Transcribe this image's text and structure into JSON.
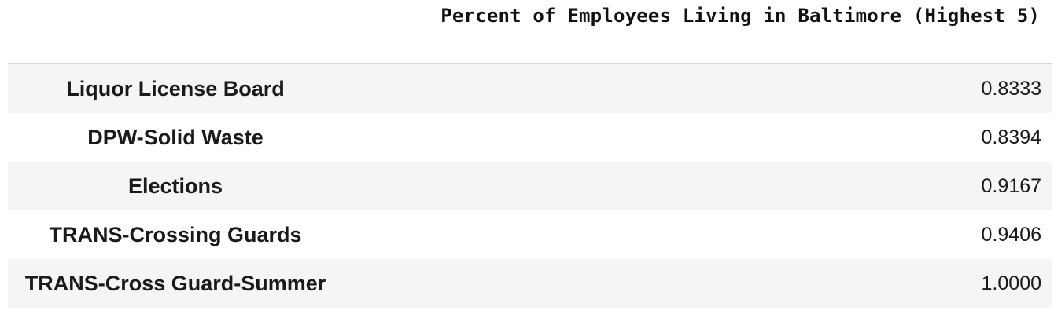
{
  "chart_data": {
    "type": "table",
    "title": "Percent of Employees Living in Baltimore (Highest 5)",
    "rows": [
      {
        "label": "Liquor License Board",
        "value": "0.8333"
      },
      {
        "label": "DPW-Solid Waste",
        "value": "0.8394"
      },
      {
        "label": "Elections",
        "value": "0.9167"
      },
      {
        "label": "TRANS-Crossing Guards",
        "value": "0.9406"
      },
      {
        "label": "TRANS-Cross Guard-Summer",
        "value": "1.0000"
      }
    ]
  }
}
